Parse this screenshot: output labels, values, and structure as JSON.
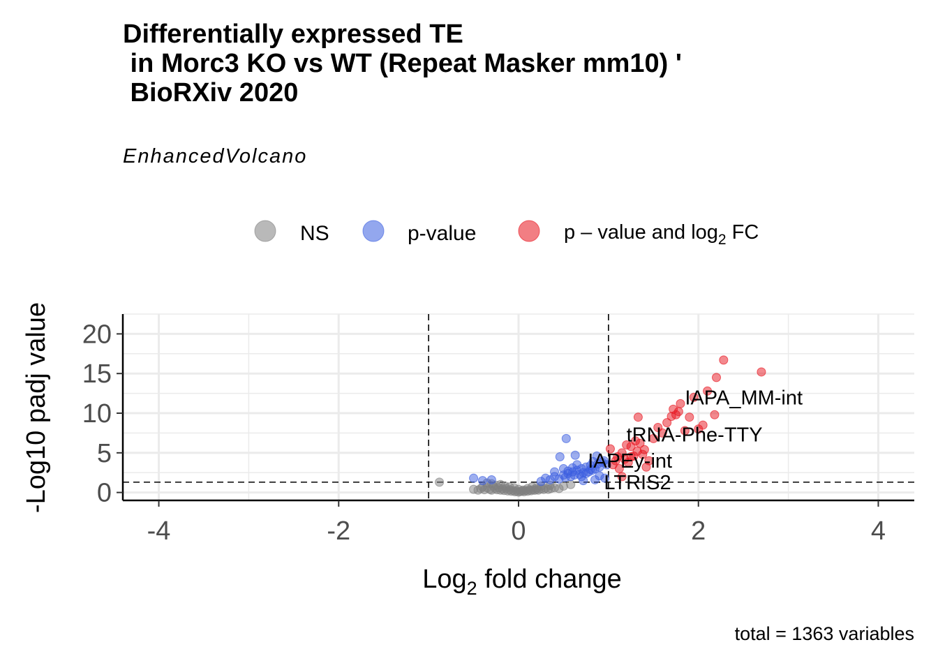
{
  "chart_data": {
    "type": "scatter",
    "title_lines": [
      "Differentially expressed TE",
      " in Morc3 KO vs WT (Repeat Masker mm10) '",
      " BioRXiv 2020"
    ],
    "subtitle": "EnhancedVolcano",
    "caption": "total = 1363 variables",
    "xlabel": {
      "main": "Log",
      "sub": "2",
      "rest": " fold change"
    },
    "ylabel": "-Log10 padj value",
    "xlim": [
      -4.4,
      4.4
    ],
    "ylim": [
      -1.0,
      22.5
    ],
    "xticks": [
      -4,
      -2,
      0,
      2,
      4
    ],
    "xtick_labels": [
      "-4",
      "-2",
      "0",
      "2",
      "4"
    ],
    "yticks": [
      0,
      5,
      10,
      15,
      20
    ],
    "ytick_labels": [
      "0",
      "5",
      "10",
      "15",
      "20"
    ],
    "grid": true,
    "legend_position": "top",
    "cutoffs": {
      "fc_left": -1,
      "fc_right": 1,
      "p": 1.3
    },
    "legend": [
      {
        "key": "ns",
        "label": "NS",
        "color": "#808080"
      },
      {
        "key": "p",
        "label": "p-value",
        "color": "#3b5ee0"
      },
      {
        "key": "both",
        "label_main": "p – value and log",
        "label_sub": "2",
        "label_rest": " FC",
        "color": "#e8141e"
      }
    ],
    "series": [
      {
        "key": "ns",
        "color": "#808080",
        "x": [
          -0.88,
          -0.5,
          -0.45,
          -0.42,
          -0.38,
          -0.35,
          -0.32,
          -0.3,
          -0.28,
          -0.26,
          -0.24,
          -0.22,
          -0.2,
          -0.18,
          -0.16,
          -0.14,
          -0.12,
          -0.1,
          -0.08,
          -0.06,
          -0.04,
          -0.02,
          0.0,
          0.02,
          0.04,
          0.06,
          0.08,
          0.1,
          0.12,
          0.14,
          0.16,
          0.18,
          0.2,
          0.22,
          0.25,
          0.28,
          0.3,
          0.33,
          0.36,
          0.4,
          0.45,
          -0.3,
          -0.2,
          -0.1,
          0.0,
          0.1,
          0.2,
          -0.25,
          -0.15,
          -0.05,
          0.05,
          0.15,
          0.25,
          -0.35,
          0.35,
          -0.4,
          0.5,
          0.58
        ],
        "y": [
          1.3,
          0.4,
          0.3,
          0.5,
          0.35,
          0.6,
          0.4,
          0.3,
          0.8,
          0.5,
          0.35,
          0.6,
          0.3,
          0.45,
          0.25,
          0.5,
          0.2,
          0.35,
          0.15,
          0.25,
          0.1,
          0.18,
          0.05,
          0.12,
          0.2,
          0.1,
          0.25,
          0.15,
          0.3,
          0.22,
          0.35,
          0.28,
          0.4,
          0.3,
          0.45,
          0.38,
          0.55,
          0.4,
          0.5,
          0.6,
          0.5,
          1.1,
          1.0,
          0.7,
          0.4,
          0.5,
          0.6,
          0.9,
          0.8,
          0.6,
          0.3,
          0.7,
          0.8,
          1.2,
          0.9,
          0.7,
          0.8,
          1.0
        ]
      },
      {
        "key": "p",
        "color": "#3b5ee0",
        "x": [
          -0.5,
          -0.4,
          -0.3,
          0.25,
          0.3,
          0.35,
          0.4,
          0.45,
          0.5,
          0.52,
          0.55,
          0.58,
          0.6,
          0.62,
          0.65,
          0.68,
          0.7,
          0.72,
          0.75,
          0.78,
          0.8,
          0.82,
          0.85,
          0.88,
          0.9,
          0.93,
          0.95,
          0.98,
          0.4,
          0.5,
          0.55,
          0.6,
          0.65,
          0.7,
          0.75,
          0.8,
          0.85,
          0.9,
          0.53,
          0.46,
          0.63,
          0.83,
          0.87,
          0.96,
          0.72
        ],
        "y": [
          1.8,
          1.5,
          1.6,
          1.4,
          1.8,
          1.6,
          2.0,
          1.7,
          2.2,
          1.9,
          2.4,
          2.0,
          2.6,
          2.2,
          2.8,
          2.3,
          3.0,
          2.5,
          3.2,
          2.6,
          3.4,
          2.8,
          3.0,
          3.6,
          3.2,
          3.8,
          4.0,
          3.5,
          2.6,
          3.0,
          2.7,
          3.1,
          3.5,
          2.0,
          2.4,
          2.9,
          1.6,
          2.1,
          6.8,
          4.5,
          4.7,
          3.9,
          4.6,
          1.8,
          1.5
        ]
      },
      {
        "key": "both",
        "color": "#e8141e",
        "x": [
          1.02,
          1.05,
          1.08,
          1.1,
          1.12,
          1.15,
          1.18,
          1.2,
          1.22,
          1.25,
          1.28,
          1.3,
          1.32,
          1.35,
          1.38,
          1.4,
          1.45,
          1.5,
          1.55,
          1.6,
          1.65,
          1.7,
          1.72,
          1.75,
          1.78,
          1.8,
          1.85,
          1.9,
          1.95,
          2.0,
          2.05,
          2.1,
          2.18,
          2.2,
          2.28,
          2.7,
          1.33,
          1.25,
          1.42,
          1.15
        ],
        "y": [
          5.5,
          3.5,
          4.0,
          4.5,
          3.0,
          5.0,
          4.2,
          6.0,
          3.8,
          5.8,
          4.6,
          6.5,
          5.2,
          6.2,
          4.8,
          5.4,
          4.0,
          6.8,
          8.2,
          7.5,
          8.8,
          9.6,
          10.5,
          9.8,
          10.2,
          11.2,
          7.8,
          9.5,
          12.0,
          8.0,
          8.5,
          12.8,
          9.8,
          14.5,
          16.7,
          15.2,
          9.5,
          4.5,
          3.2,
          2.0
        ]
      }
    ],
    "labels": [
      {
        "text": "IAPA_MM-int",
        "x": 1.85,
        "y": 12.0
      },
      {
        "text": "tRNA-Phe-TTY",
        "x": 1.2,
        "y": 7.3
      },
      {
        "text": "IAPEy-int",
        "x": 0.77,
        "y": 4.0
      },
      {
        "text": "LTRIS2",
        "x": 0.95,
        "y": 1.3
      }
    ]
  }
}
